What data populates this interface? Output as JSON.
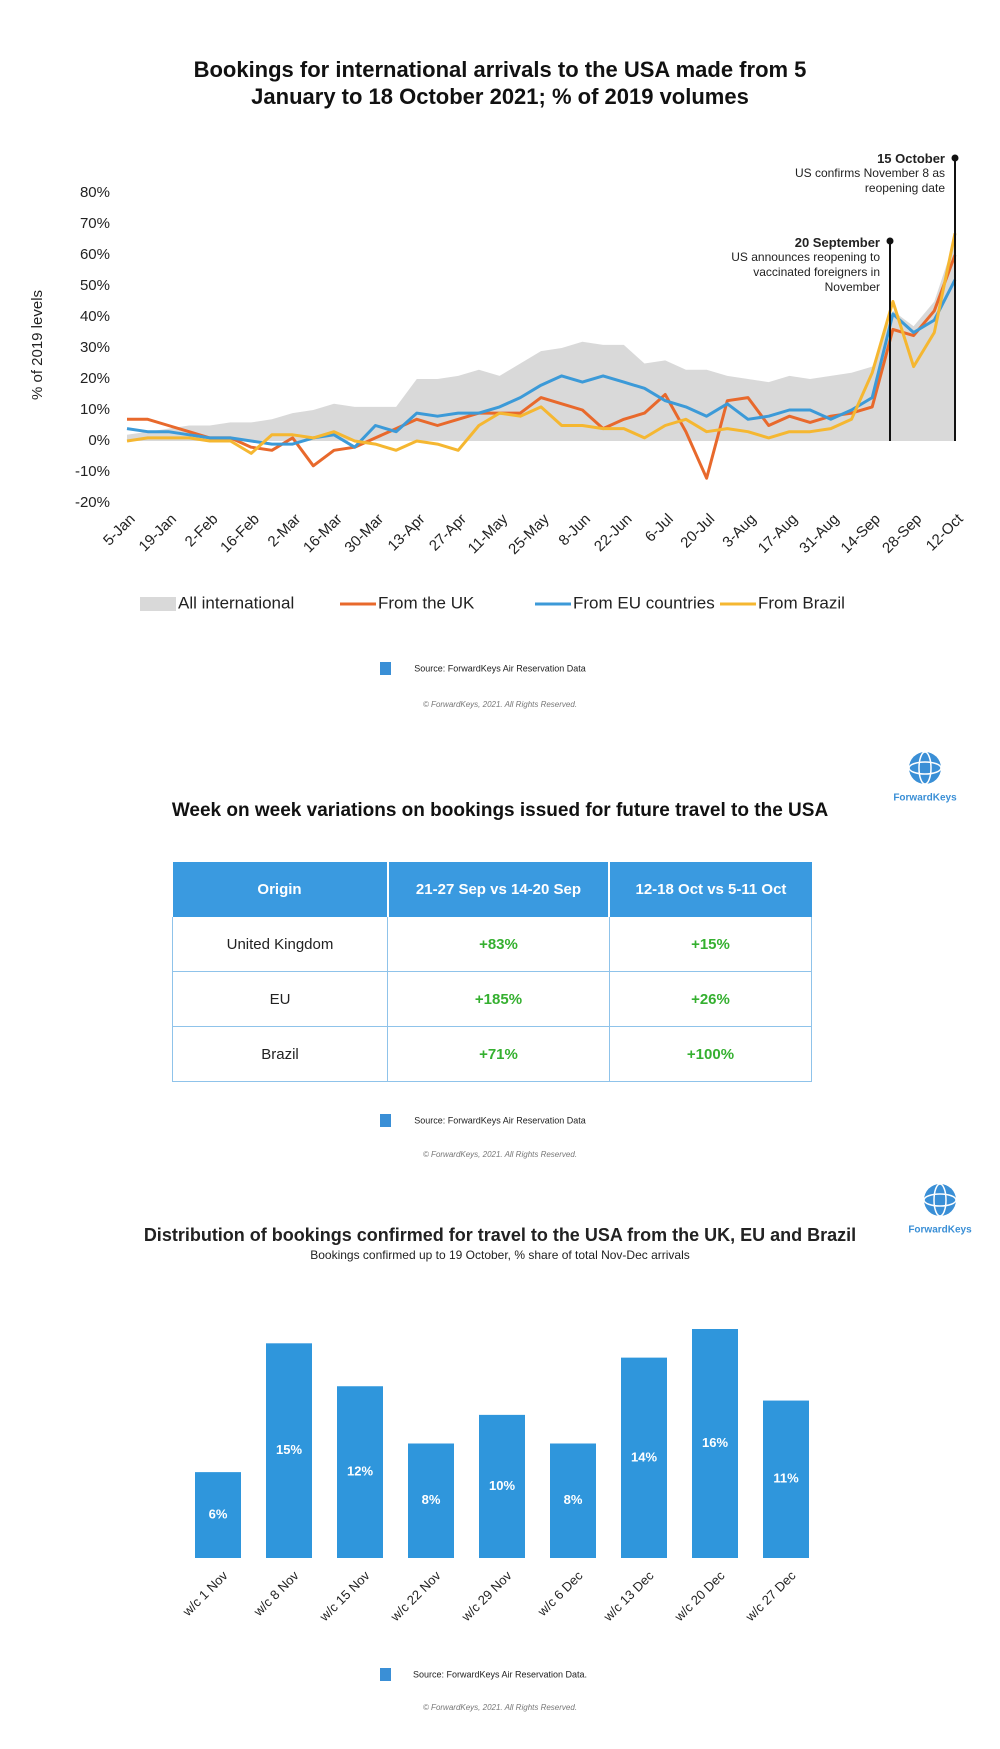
{
  "chart_data": [
    {
      "type": "line",
      "title": "Bookings for international arrivals to the USA made from 5 January to 18 October 2021; % of 2019 volumes",
      "y_label": "% of 2019 levels",
      "categories": [
        "5-Jan",
        null,
        "19-Jan",
        null,
        "2-Feb",
        null,
        "16-Feb",
        null,
        "2-Mar",
        null,
        "16-Mar",
        null,
        "30-Mar",
        null,
        "13-Apr",
        null,
        "27-Apr",
        null,
        "11-May",
        null,
        "25-May",
        null,
        "8-Jun",
        null,
        "22-Jun",
        null,
        "6-Jul",
        null,
        "20-Jul",
        null,
        "3-Aug",
        null,
        "17-Aug",
        null,
        "31-Aug",
        null,
        "14-Sep",
        null,
        "28-Sep",
        null,
        "12-Oct"
      ],
      "series": [
        {
          "name": "All international",
          "style": "area",
          "color": "#d9d9d9",
          "values": [
            2,
            3,
            4,
            5,
            5,
            6,
            6,
            7,
            9,
            10,
            12,
            11,
            11,
            11,
            20,
            20,
            21,
            23,
            21,
            25,
            29,
            30,
            32,
            31,
            31,
            25,
            26,
            23,
            23,
            21,
            20,
            19,
            21,
            20,
            21,
            22,
            24,
            42,
            37,
            45,
            65
          ]
        },
        {
          "name": "From the UK",
          "style": "line",
          "color": "#e8692c",
          "values": [
            7,
            7,
            5,
            3,
            1,
            1,
            -2,
            -3,
            1,
            -8,
            -3,
            -2,
            1,
            4,
            7,
            5,
            7,
            9,
            9,
            9,
            14,
            12,
            10,
            4,
            7,
            9,
            15,
            3,
            -12,
            13,
            14,
            5,
            8,
            6,
            8,
            9,
            11,
            36,
            34,
            42,
            60
          ]
        },
        {
          "name": "From EU countries",
          "style": "line",
          "color": "#3c9ad8",
          "values": [
            4,
            3,
            3,
            2,
            1,
            1,
            0,
            -1,
            -1,
            1,
            2,
            -2,
            5,
            3,
            9,
            8,
            9,
            9,
            11,
            14,
            18,
            21,
            19,
            21,
            19,
            17,
            13,
            11,
            8,
            12,
            7,
            8,
            10,
            10,
            7,
            10,
            14,
            41,
            35,
            39,
            52
          ]
        },
        {
          "name": "From Brazil",
          "style": "line",
          "color": "#f5b731",
          "values": [
            0,
            1,
            1,
            1,
            0,
            0,
            -4,
            2,
            2,
            1,
            3,
            0,
            -1,
            -3,
            0,
            -1,
            -3,
            5,
            9,
            8,
            11,
            5,
            5,
            4,
            4,
            1,
            5,
            7,
            3,
            4,
            3,
            1,
            3,
            3,
            4,
            7,
            22,
            45,
            24,
            35,
            67
          ]
        }
      ],
      "ylim": [
        -20,
        80
      ],
      "yticks": [
        {
          "value": -20,
          "label": "-20%"
        },
        {
          "value": -10,
          "label": "-10%"
        },
        {
          "value": 0,
          "label": "0%"
        },
        {
          "value": 10,
          "label": "10%"
        },
        {
          "value": 20,
          "label": "20%"
        },
        {
          "value": 30,
          "label": "30%"
        },
        {
          "value": 40,
          "label": "40%"
        },
        {
          "value": 50,
          "label": "50%"
        },
        {
          "value": 60,
          "label": "60%"
        },
        {
          "value": 70,
          "label": "70%"
        },
        {
          "value": 80,
          "label": "80%"
        }
      ],
      "annotations": [
        {
          "date": "15 October",
          "text": "US confirms November 8 as reopening date"
        },
        {
          "date": "20 September",
          "text": "US announces reopening to vaccinated foreigners in November"
        }
      ]
    },
    {
      "type": "bar",
      "title": "Distribution of bookings confirmed for travel to the USA from the UK, EU and Brazil",
      "subtitle": "Bookings confirmed up to 19 October, % share of total Nov-Dec arrivals",
      "categories": [
        "w/c 1 Nov",
        "w/c 8 Nov",
        "w/c 15 Nov",
        "w/c 22 Nov",
        "w/c 29 Nov",
        "w/c 6 Dec",
        "w/c 13 Dec",
        "w/c 20 Dec",
        "w/c 27 Dec"
      ],
      "values": [
        6,
        15,
        12,
        8,
        10,
        8,
        14,
        16,
        11
      ],
      "value_labels": [
        "6%",
        "15%",
        "12%",
        "8%",
        "10%",
        "8%",
        "14%",
        "16%",
        "11%"
      ],
      "color": "#2f96dc"
    }
  ],
  "table": {
    "title": "Week on week variations on bookings issued for future travel to the USA",
    "header": [
      "Origin",
      "21-27 Sep vs 14-20 Sep",
      "12-18 Oct vs 5-11 Oct"
    ],
    "rows": [
      [
        "United Kingdom",
        "+83%",
        "+15%"
      ],
      [
        "EU",
        "+185%",
        "+26%"
      ],
      [
        "Brazil",
        "+71%",
        "+100%"
      ]
    ]
  },
  "footers": [
    {
      "source": "Source: ForwardKeys Air Reservation Data",
      "copyright": "© ForwardKeys, 2021. All Rights Reserved."
    },
    {
      "source": "Source: ForwardKeys Air Reservation Data",
      "copyright": "© ForwardKeys, 2021. All Rights Reserved."
    },
    {
      "source": "Source: ForwardKeys Air Reservation Data.",
      "copyright": "© ForwardKeys, 2021. All Rights Reserved."
    }
  ],
  "logos": [
    "ForwardKeys",
    "ForwardKeys"
  ]
}
